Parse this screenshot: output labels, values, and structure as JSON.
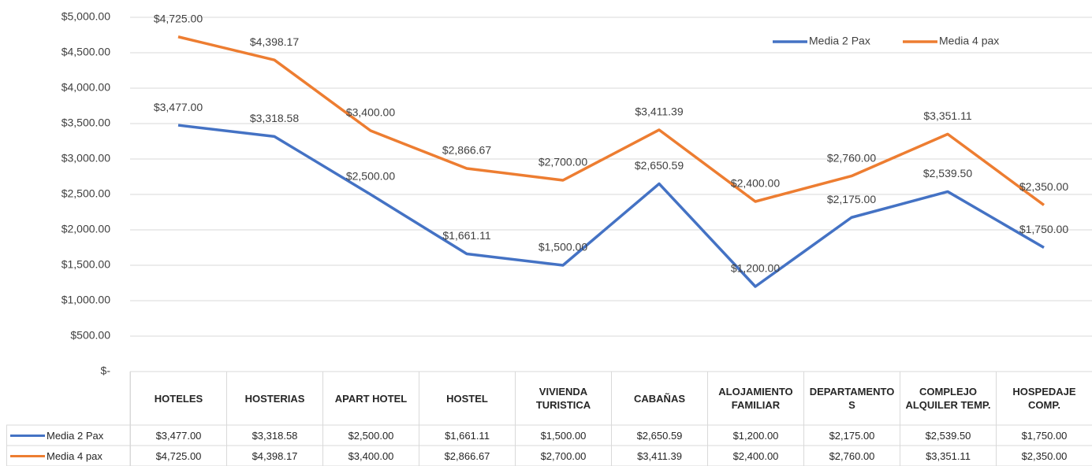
{
  "chart_data": {
    "type": "line",
    "categories": [
      "HOTELES",
      "HOSTERIAS",
      "APART HOTEL",
      "HOSTEL",
      "VIVIENDA TURISTICA",
      "CABAÑAS",
      "ALOJAMIENTO FAMILIAR",
      "DEPARTAMENTOS",
      "COMPLEJO ALQUILER TEMP.",
      "HOSPEDAJE COMP."
    ],
    "series": [
      {
        "name": "Media 2 Pax",
        "color": "#4472c4",
        "values": [
          3477.0,
          3318.58,
          2500.0,
          1661.11,
          1500.0,
          2650.59,
          1200.0,
          2175.0,
          2539.5,
          1750.0
        ],
        "value_labels": [
          "$3,477.00",
          "$3,318.58",
          "$2,500.00",
          "$1,661.11",
          "$1,500.00",
          "$2,650.59",
          "$1,200.00",
          "$2,175.00",
          "$2,539.50",
          "$1,750.00"
        ]
      },
      {
        "name": "Media 4 pax",
        "color": "#ed7d31",
        "values": [
          4725.0,
          4398.17,
          3400.0,
          2866.67,
          2700.0,
          3411.39,
          2400.0,
          2760.0,
          3351.11,
          2350.0
        ],
        "value_labels": [
          "$4,725.00",
          "$4,398.17",
          "$3,400.00",
          "$2,866.67",
          "$2,700.00",
          "$3,411.39",
          "$2,400.00",
          "$2,760.00",
          "$3,351.11",
          "$2,350.00"
        ]
      }
    ],
    "ylim": [
      0,
      5000
    ],
    "yticks": [
      {
        "value": 0,
        "label": "$-"
      },
      {
        "value": 500,
        "label": "$500.00"
      },
      {
        "value": 1000,
        "label": "$1,000.00"
      },
      {
        "value": 1500,
        "label": "$1,500.00"
      },
      {
        "value": 2000,
        "label": "$2,000.00"
      },
      {
        "value": 2500,
        "label": "$2,500.00"
      },
      {
        "value": 3000,
        "label": "$3,000.00"
      },
      {
        "value": 3500,
        "label": "$3,500.00"
      },
      {
        "value": 4000,
        "label": "$4,000.00"
      },
      {
        "value": 4500,
        "label": "$4,500.00"
      },
      {
        "value": 5000,
        "label": "$5,000.00"
      }
    ],
    "grid": true,
    "legend": "top-right",
    "data_table": true
  }
}
